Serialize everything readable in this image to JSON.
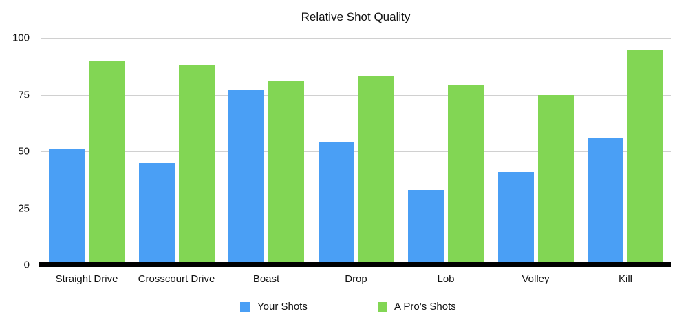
{
  "chart_data": {
    "type": "bar",
    "title": "Relative Shot Quality",
    "xlabel": "",
    "ylabel": "",
    "ylim": [
      0,
      100
    ],
    "yticks": [
      0,
      25,
      50,
      75,
      100
    ],
    "grid": true,
    "legend_position": "bottom",
    "categories": [
      "Straight Drive",
      "Crosscourt Drive",
      "Boast",
      "Drop",
      "Lob",
      "Volley",
      "Kill"
    ],
    "series": [
      {
        "name": "Your Shots",
        "color": "#4a9ff5",
        "values": [
          51,
          45,
          77,
          54,
          33,
          41,
          56
        ]
      },
      {
        "name": "A Pro’s Shots",
        "color": "#82d654",
        "values": [
          90,
          88,
          81,
          83,
          79,
          75,
          95
        ]
      }
    ]
  }
}
